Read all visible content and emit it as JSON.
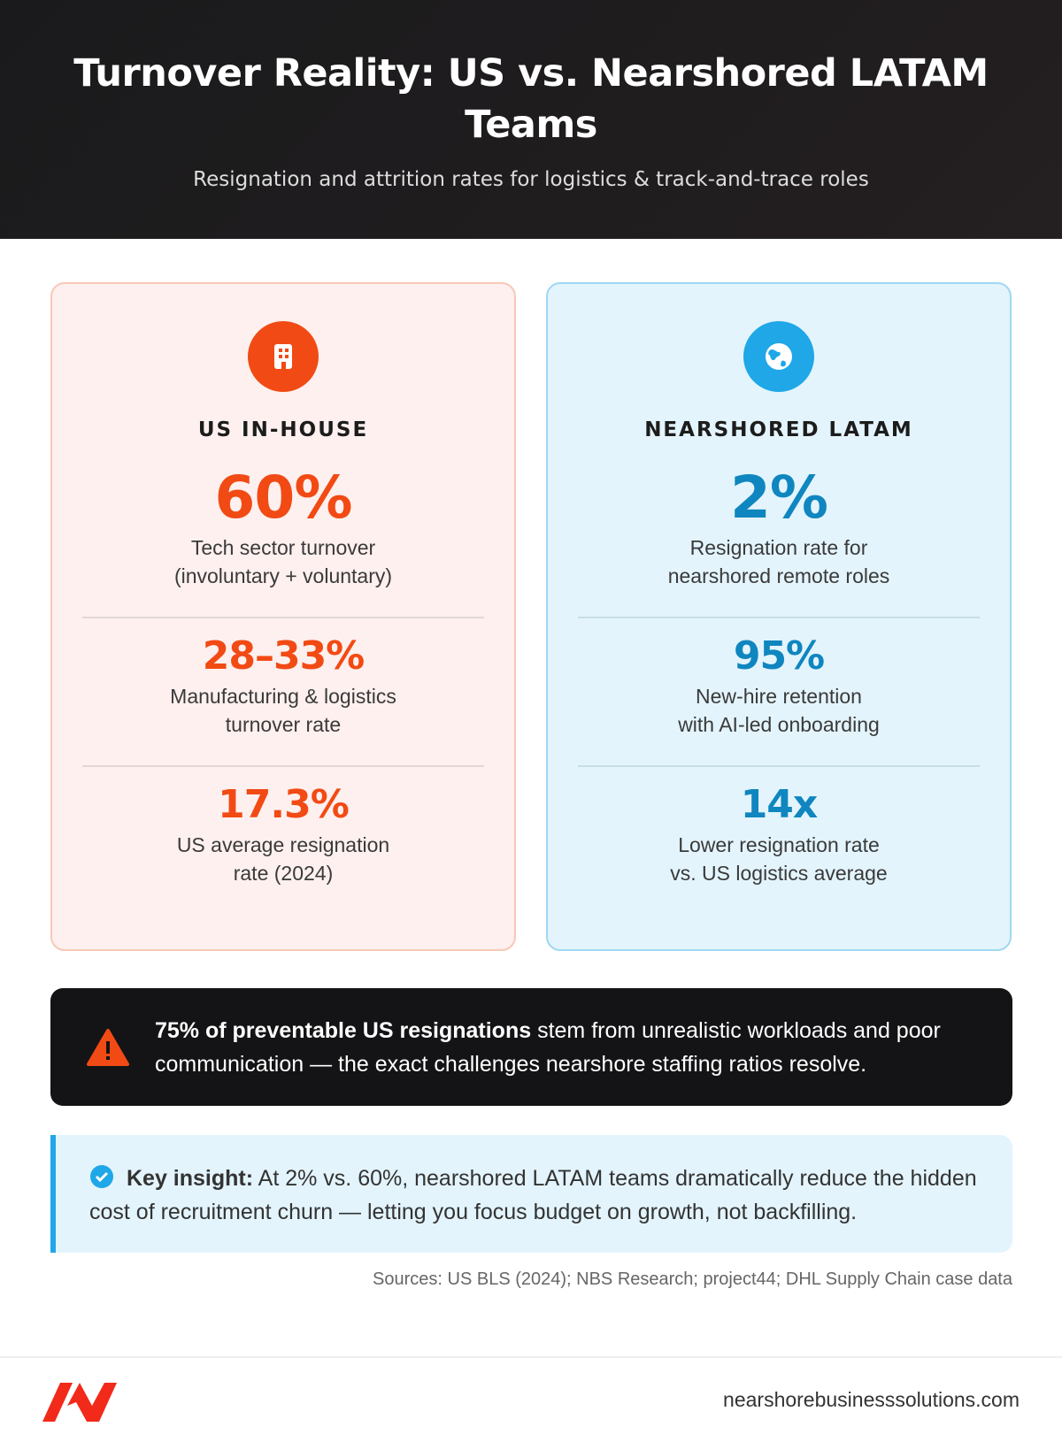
{
  "header": {
    "title": "Turnover Reality: US vs. Nearshored LATAM Teams",
    "subtitle": "Resignation and attrition rates for logistics & track-and-trace roles"
  },
  "panels": [
    {
      "label": "US IN-HOUSE",
      "stats": [
        {
          "value": "60%",
          "lines": [
            "Tech sector turnover",
            "(involuntary + voluntary)"
          ]
        },
        {
          "value": "28–33%",
          "lines": [
            "Manufacturing & logistics",
            "turnover rate"
          ]
        },
        {
          "value": "17.3%",
          "lines": [
            "US average resignation",
            "rate (2024)"
          ]
        }
      ]
    },
    {
      "label": "NEARSHORED LATAM",
      "stats": [
        {
          "value": "2%",
          "lines": [
            "Resignation rate for",
            "nearshored remote roles"
          ]
        },
        {
          "value": "95%",
          "lines": [
            "New-hire retention",
            "with AI-led onboarding"
          ]
        },
        {
          "value": "14x",
          "lines": [
            "Lower resignation rate",
            "vs. US logistics average"
          ]
        }
      ]
    }
  ],
  "callout": {
    "bold": "75% of preventable US resignations",
    "text": "stem from unrealistic workloads and poor communication — the exact challenges nearshore staffing ratios resolve."
  },
  "insight": {
    "bold": "Key insight:",
    "text": "At 2% vs. 60%, nearshored LATAM teams dramatically reduce the hidden cost of recruitment churn — letting you focus budget on growth, not backfilling."
  },
  "sources": "Sources: US BLS (2024); NBS Research; project44; DHL Supply Chain case data",
  "footer": {
    "url": "nearshorebusinesssolutions.com"
  }
}
